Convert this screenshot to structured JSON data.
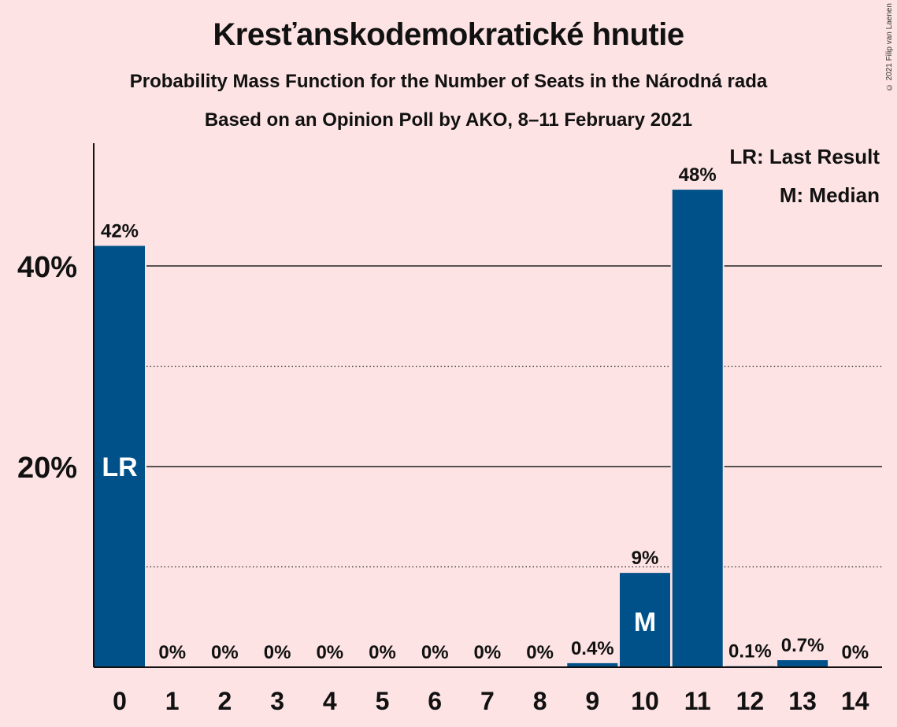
{
  "header": {
    "title": "Kresťanskodemokratické hnutie",
    "subtitle": "Probability Mass Function for the Number of Seats in the Národná rada",
    "subtitle2": "Based on an Opinion Poll by AKO, 8–11 February 2021",
    "copyright": "© 2021 Filip van Laenen"
  },
  "legend": {
    "last_result": "LR: Last Result",
    "median": "M: Median"
  },
  "chart_data": {
    "type": "bar",
    "categories": [
      "0",
      "1",
      "2",
      "3",
      "4",
      "5",
      "6",
      "7",
      "8",
      "9",
      "10",
      "11",
      "12",
      "13",
      "14"
    ],
    "values": [
      42,
      0,
      0,
      0,
      0,
      0,
      0,
      0,
      0,
      0.4,
      9.4,
      47.6,
      0.1,
      0.7,
      0
    ],
    "data_labels": [
      "42%",
      "0%",
      "0%",
      "0%",
      "0%",
      "0%",
      "0%",
      "0%",
      "0%",
      "0.4%",
      "9%",
      "48%",
      "0.1%",
      "0.7%",
      "0%"
    ],
    "bar_markers": {
      "0": "LR",
      "10": "M"
    },
    "yticks": [
      {
        "value": 20,
        "label": "20%"
      },
      {
        "value": 40,
        "label": "40%"
      }
    ],
    "minor_gridlines": [
      10,
      30
    ],
    "ylim": [
      0,
      52
    ],
    "bar_color": "#005189",
    "background": "#fde3e4"
  }
}
